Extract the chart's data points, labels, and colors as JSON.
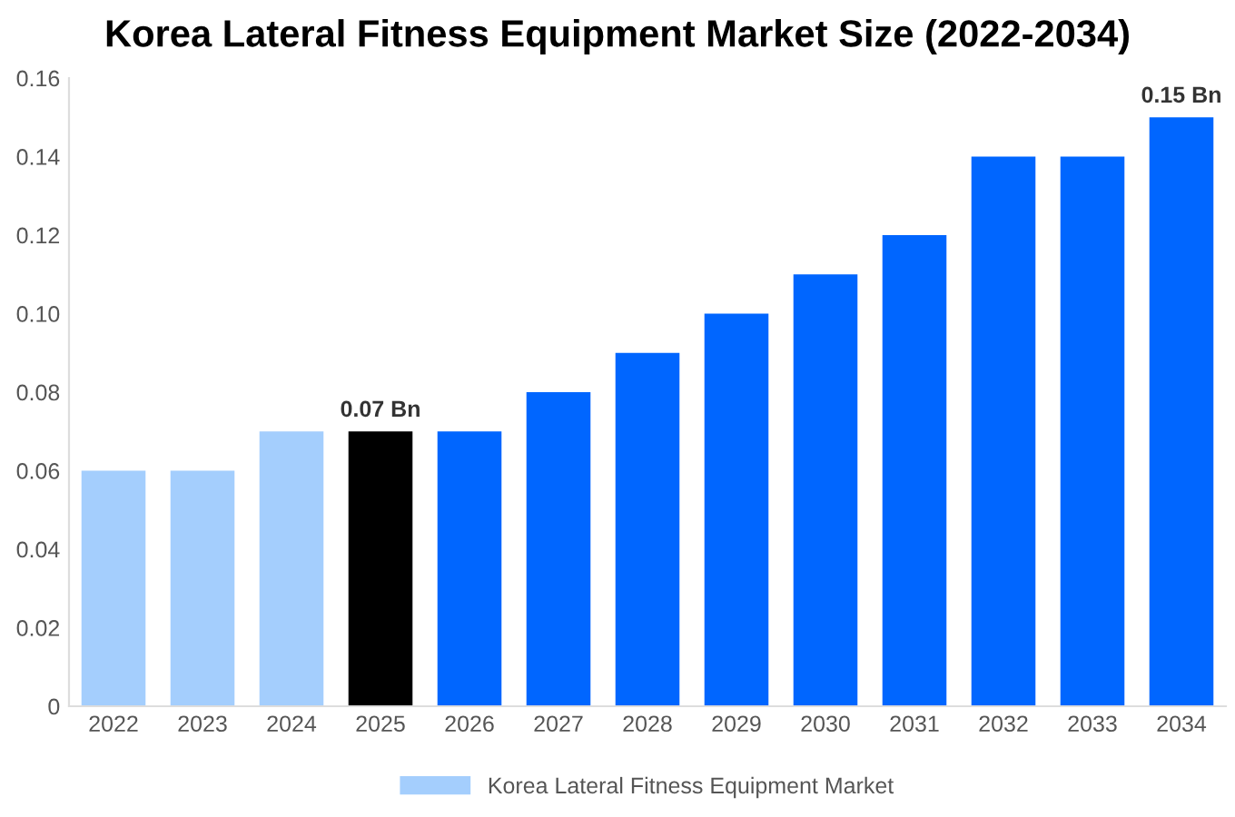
{
  "chart_data": {
    "type": "bar",
    "title": "Korea Lateral Fitness Equipment Market Size (2022-2034)",
    "categories": [
      "2022",
      "2023",
      "2024",
      "2025",
      "2026",
      "2027",
      "2028",
      "2029",
      "2030",
      "2031",
      "2032",
      "2033",
      "2034"
    ],
    "series": [
      {
        "name": "Korea Lateral Fitness Equipment Market",
        "color": "#a4cefd",
        "values": [
          0.06,
          0.06,
          0.07,
          0.07,
          0.07,
          0.08,
          0.09,
          0.1,
          0.11,
          0.12,
          0.14,
          0.14,
          0.15
        ],
        "colors": [
          "#a4cefd",
          "#a4cefd",
          "#a4cefd",
          "#000000",
          "#0066ff",
          "#0066ff",
          "#0066ff",
          "#0066ff",
          "#0066ff",
          "#0066ff",
          "#0066ff",
          "#0066ff",
          "#0066ff"
        ],
        "value_labels": [
          null,
          null,
          null,
          "0.07 Bn",
          null,
          null,
          null,
          null,
          null,
          null,
          null,
          null,
          "0.15 Bn"
        ]
      }
    ],
    "ylim": [
      0,
      0.16
    ],
    "yticks": [
      0,
      {
        "value": 0.02,
        "label": "0.02"
      },
      {
        "value": 0.04,
        "label": "0.04"
      },
      {
        "value": 0.06,
        "label": "0.06"
      },
      {
        "value": 0.08,
        "label": "0.08"
      },
      {
        "value": 0.1,
        "label": "0.10"
      },
      {
        "value": 0.12,
        "label": "0.12"
      },
      {
        "value": 0.14,
        "label": "0.14"
      },
      {
        "value": 0.16,
        "label": "0.16"
      }
    ],
    "grid": false,
    "legend": "bottom"
  }
}
